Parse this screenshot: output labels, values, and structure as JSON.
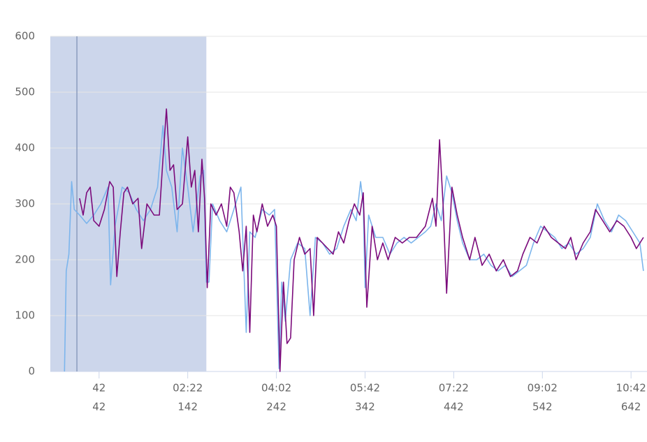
{
  "chart_data": {
    "type": "line",
    "xlim": [
      -13,
      660
    ],
    "ylim": [
      0,
      600
    ],
    "yticks": [
      0,
      100,
      200,
      300,
      400,
      500,
      600
    ],
    "xticks": [
      42,
      {
        "value": 142,
        "label": "02:22"
      },
      {
        "value": 242,
        "label": "04:02"
      },
      {
        "value": 342,
        "label": "05:42"
      },
      {
        "value": 442,
        "label": "07:22"
      },
      {
        "value": 542,
        "label": "09:02"
      },
      {
        "value": 642,
        "label": "10:42"
      }
    ],
    "xticks2": [
      42,
      142,
      242,
      342,
      442,
      542,
      642
    ],
    "grid": true,
    "selection": {
      "xrange": [
        -13,
        163
      ],
      "color": "#ccd6eb"
    },
    "cursor_x": 17,
    "series": [
      {
        "color": "#7cb5ec",
        "x": [
          3,
          5,
          8,
          11,
          14,
          20,
          28,
          36,
          44,
          52,
          55,
          60,
          68,
          76,
          84,
          92,
          100,
          108,
          114,
          118,
          124,
          130,
          136,
          142,
          148,
          156,
          160,
          163,
          166,
          170,
          178,
          186,
          194,
          202,
          208,
          212,
          218,
          226,
          234,
          240,
          245,
          248,
          252,
          258,
          266,
          274,
          280,
          286,
          294,
          302,
          310,
          318,
          326,
          332,
          337,
          340,
          342,
          346,
          354,
          362,
          370,
          378,
          386,
          394,
          402,
          410,
          416,
          422,
          428,
          434,
          440,
          446,
          452,
          460,
          468,
          476,
          484,
          492,
          500,
          508,
          516,
          524,
          532,
          540,
          548,
          556,
          564,
          572,
          580,
          588,
          596,
          604,
          612,
          620,
          628,
          636,
          644,
          652,
          656
        ],
        "values": [
          0,
          180,
          210,
          340,
          290,
          280,
          265,
          280,
          300,
          330,
          155,
          260,
          330,
          320,
          290,
          270,
          290,
          330,
          440,
          360,
          330,
          250,
          400,
          330,
          250,
          350,
          360,
          160,
          160,
          300,
          270,
          250,
          290,
          330,
          70,
          250,
          240,
          290,
          280,
          290,
          5,
          160,
          90,
          200,
          230,
          220,
          100,
          240,
          230,
          210,
          220,
          260,
          290,
          270,
          340,
          300,
          150,
          280,
          240,
          240,
          210,
          230,
          240,
          230,
          240,
          250,
          260,
          300,
          270,
          350,
          320,
          270,
          230,
          200,
          200,
          210,
          190,
          180,
          190,
          170,
          180,
          190,
          230,
          260,
          250,
          240,
          220,
          230,
          210,
          220,
          240,
          300,
          270,
          250,
          280,
          270,
          250,
          230,
          180
        ]
      },
      {
        "color": "#7b0a7b",
        "x": [
          20,
          24,
          28,
          32,
          36,
          42,
          48,
          54,
          58,
          62,
          66,
          70,
          74,
          80,
          86,
          90,
          96,
          104,
          110,
          114,
          118,
          122,
          126,
          130,
          136,
          142,
          146,
          150,
          154,
          158,
          161,
          164,
          168,
          174,
          180,
          186,
          190,
          194,
          200,
          204,
          208,
          212,
          216,
          220,
          226,
          232,
          238,
          242,
          246,
          250,
          254,
          258,
          262,
          268,
          274,
          280,
          284,
          288,
          294,
          300,
          306,
          312,
          318,
          324,
          330,
          336,
          340,
          344,
          350,
          356,
          362,
          368,
          376,
          384,
          392,
          400,
          410,
          418,
          422,
          426,
          430,
          434,
          440,
          446,
          452,
          460,
          466,
          474,
          482,
          490,
          498,
          506,
          514,
          520,
          528,
          536,
          544,
          552,
          560,
          568,
          574,
          580,
          588,
          596,
          602,
          610,
          618,
          626,
          634,
          642,
          648,
          656
        ],
        "values": [
          310,
          280,
          320,
          330,
          270,
          260,
          290,
          340,
          330,
          170,
          250,
          320,
          330,
          300,
          310,
          220,
          300,
          280,
          280,
          380,
          470,
          360,
          370,
          290,
          300,
          420,
          330,
          360,
          250,
          380,
          310,
          150,
          300,
          280,
          300,
          260,
          330,
          320,
          250,
          180,
          260,
          70,
          280,
          250,
          300,
          260,
          280,
          260,
          0,
          160,
          50,
          60,
          200,
          240,
          210,
          220,
          100,
          240,
          230,
          220,
          210,
          250,
          230,
          270,
          300,
          280,
          320,
          115,
          260,
          200,
          230,
          200,
          240,
          230,
          240,
          240,
          260,
          310,
          260,
          415,
          300,
          140,
          330,
          280,
          240,
          200,
          240,
          190,
          210,
          180,
          200,
          170,
          180,
          210,
          240,
          230,
          260,
          240,
          230,
          220,
          240,
          200,
          230,
          250,
          290,
          270,
          250,
          270,
          260,
          240,
          220,
          240
        ]
      }
    ]
  }
}
